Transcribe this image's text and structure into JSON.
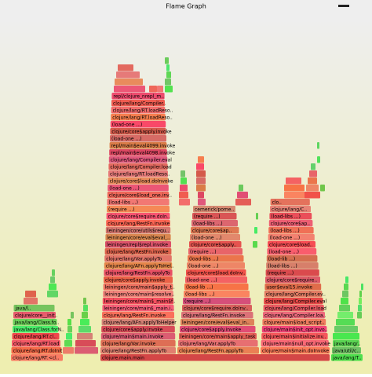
{
  "title": "Flame Graph",
  "columns": [
    {
      "frames": [
        "clojure.main.main"
      ]
    },
    {
      "frames": [
        "clojure/lang/RT.<cl..",
        "clojure/lang/RT.doInit",
        "clojure/lang/RT.load",
        "clojure/lang/RT.cl..",
        "java/lang/Class.forN..",
        "java/lang/Class.fo..",
        "clojure/core__init..",
        "java/l.."
      ]
    },
    {
      "frames": [
        "clojure/lang/RestFn.applyTo",
        "clojure/lang/Var.invoke",
        "clojure/main$main.invoke",
        "clojure/core$apply.invoke",
        "clojure/lang/AFn.applyToHelper",
        "clojure/lang/RestFn.invoke",
        "leiningen/core/main$_main.i..",
        "leiningen/core/main$_main$f..",
        "leiningen/core/main$resolve..",
        "leiningen/core/main$apply_t..",
        "clojure/core$apply.invoke",
        "clojure/lang/RestFn.applyTo",
        "clojure/lang/AFn.applyToHel..",
        "clojure/lang/Var.applyTo",
        "clojure/lang/RestFn.invoke",
        "leiningen/repl$repl.invoke",
        "leiningen/core/eval$eval_..",
        "leiningen/core/utils$requ..",
        "clojure/lang/RestFn.invoke",
        "clojure/core$require.doIn..",
        "(require ...)",
        "(load-libs ...)",
        "clojure/core$load_one.inv..",
        "(load-one ...)",
        "clojure/core$load.doInvoke",
        "clojure/lang/RT.loadReso..",
        "clojure/lang/Compiler.load",
        "clojure/lang/Compiler.eval",
        "repl/main$eval4098.invoke",
        "repl/main$eval4099.invoke",
        "(load-one ...)",
        "clojure/core$apply.invoke",
        "(load-one ...)",
        "clojure/lang/RT.loadReso..",
        "clojure/lang/RT.loadReso..",
        "clojure/lang/Compiler..",
        "repl/clojure_nrepl_m.."
      ]
    },
    {
      "frames": [
        "clojure/lang/RestFn.applyTo",
        "clojure/lang/Var.applyTo",
        "leiningen/core/main$apply_task",
        "clojure/core$apply.invoke",
        "leiningen/core/eval$eval_in..",
        "clojure/lang/RestFn.invoke",
        "clojure/core$require.doInv..",
        "(require ...)",
        "(load-libs ...)",
        "(load-lib ...)",
        "(load-one ...)",
        "clojure/core$load.doInv..",
        "(load-one ...)",
        "(load-libs ...)",
        "(require ...)",
        "clojure/core$apply..",
        "(load-one ...)",
        "clojure/core$ap..",
        "(load-libs ...)",
        "(require ...)",
        "cemerick/pome.."
      ]
    },
    {
      "frames": [
        "clojure/main$main.doInvoke",
        "clojure/main$null_opt.invoke",
        "clojure/main$initialize.inv..",
        "clojure/main$init_opt.invo..",
        "clojure/main$load_script..",
        "clojure/lang/Compiler.loa..",
        "clojure/lang/Compiler.load",
        "clojure/lang/Compiler.eval",
        "clojure/lang/Compiler.ev..",
        "user$eval15.invoke",
        "clojure/core$require..",
        "(require ...)",
        "(load-libs ...)",
        "(load-lib ...)",
        "(load-one ...)",
        "clojure/core$load..",
        "(load-one ...)",
        "(load-libs ...)",
        "clojure/core$ap..",
        "(load-libs ...)",
        "clojure/lang/C..",
        "clo.."
      ]
    },
    {
      "frames": [
        "java/lang/T..",
        "java/util/c..",
        "java/lang/.."
      ]
    }
  ]
}
